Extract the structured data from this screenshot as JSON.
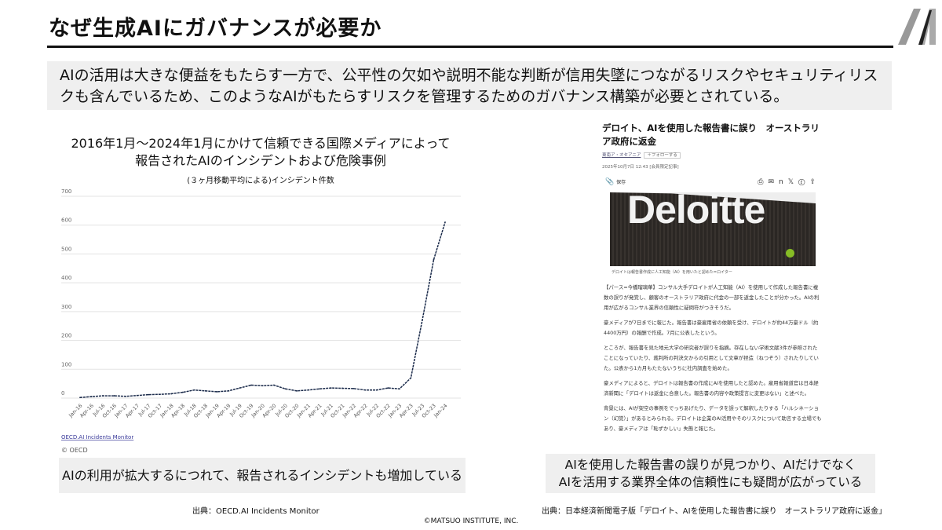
{
  "slide": {
    "title": "なぜ生成AIにガバナンスが必要か",
    "lead": "AIの活用は大きな便益をもたらす一方で、公平性の欠如や説明不能な判断が信用失墜につながるリスクやセキュリティリスクも含んでいるため、このようなAIがもたらすリスクを管理するためのガバナンス構築が必要とされている。",
    "logo": "M",
    "caption_left": "AIの利用が拡大するにつれて、報告されるインシデントも増加している",
    "caption_right_1": "AIを使用した報告書の誤りが見つかり、AIだけでなく",
    "caption_right_2": "AIを活用する業界全体の信頼性にも疑問が広がっている",
    "source_left": "出典：OECD.AI Incidents Monitor",
    "source_right": "出典：日本経済新聞電子版「デロイト、AIを使用した報告書に誤り　オーストラリア政府に返金」",
    "copyright": "©MATSUO INSTITUTE, INC."
  },
  "chart_data": {
    "type": "line",
    "title": "2016年1月～2024年1月にかけて信頼できる国際メディアによって報告されたAIのインシデントおよび危険事例",
    "title_line1": "2016年1月～2024年1月にかけて信頼できる国際メディアによって",
    "title_line2": "報告されたAIのインシデントおよび危険事例",
    "subtitle": "(３ヶ月移動平均による)インシデント件数",
    "categories": [
      "Jan-16",
      "Apr-16",
      "Jul-16",
      "Oct-16",
      "Jan-17",
      "Apr-17",
      "Jul-17",
      "Oct-17",
      "Jan-18",
      "Apr-18",
      "Jul-18",
      "Oct-18",
      "Jan-19",
      "Apr-19",
      "Jul-19",
      "Oct-19",
      "Jan-20",
      "Apr-20",
      "Jul-20",
      "Oct-20",
      "Jan-21",
      "Apr-21",
      "Jul-21",
      "Oct-21",
      "Jan-22",
      "Apr-22",
      "Jul-22",
      "Oct-22",
      "Jan-23",
      "Apr-23",
      "Jul-23",
      "Oct-23",
      "Jan-24"
    ],
    "values": [
      2,
      5,
      8,
      8,
      6,
      9,
      12,
      13,
      15,
      20,
      28,
      25,
      22,
      25,
      35,
      45,
      43,
      45,
      32,
      25,
      28,
      32,
      35,
      34,
      33,
      28,
      28,
      35,
      32,
      70,
      270,
      480,
      610
    ],
    "yticks": [
      "0",
      "100",
      "200",
      "300",
      "400",
      "500",
      "600",
      "700"
    ],
    "ylim": [
      0,
      700
    ],
    "grid": true,
    "line_color": "#1a2a4a",
    "link_text": "OECD.AI Incidents Monitor",
    "credit": "© OECD"
  },
  "article": {
    "headline": "デロイト、AIを使用した報告書に誤り　オーストラリア政府に返金",
    "category": "東南ア・オセアニア",
    "follow": "＋フォローする",
    "date": "2025年10月7日 12:43 [会員限定記事]",
    "save": "保存",
    "photo_text": "Deloitte",
    "photo_caption": "デロイトは報告書作成に人工知能（AI）を用いたと認めた=ロイター",
    "paragraphs": [
      "【パース=今橋瑠璃華】コンサル大手デロイトが人工知能（AI）を使用して作成した報告書に複数の誤りが発覚し、顧客のオーストラリア政府に代金の一部を返金したことが分かった。AIの利用が広がるコンサル業界の信頼性に疑問符がつきそうだ。",
      "豪メディアが7日までに報じた。報告書は豪雇用省の依頼を受け、デロイトが約44万豪ドル（約4400万円）の報酬で作成。7月に公表したという。",
      "ところが、報告書を見た地元大学の研究者が誤りを指摘。存在しない学術文献3件が参照されたことになっていたり、裁判所の判決文からの引用として文章が捏造（ねつぞう）されたりしていた。公表から1カ月もたたないうちに社内調査を始めた。",
      "豪メディアによると、デロイトは報告書の作成にAIを使用したと認めた。雇用省報道官は日本経済新聞に「デロイトは返金に合意した。報告書の内容や政策提言に変更はない」と述べた。",
      "背景には、AIが架空の事例をでっちあげたり、データを誤って解釈したりする「ハルシネーション（幻覚）」があるとみられる。デロイトは企業のAI活用やそのリスクについて助言する立場でもあり、豪メディアは「恥ずかしい」失態と報じた。"
    ]
  }
}
